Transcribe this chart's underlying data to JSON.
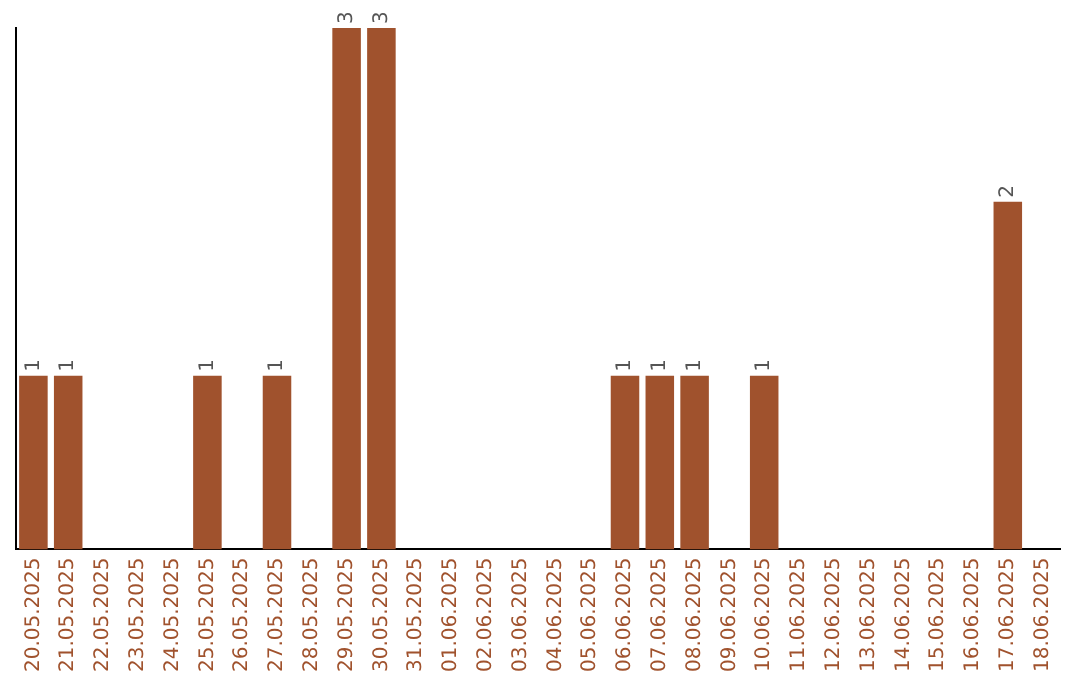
{
  "chart_data": {
    "type": "bar",
    "categories": [
      "20.05.2025",
      "21.05.2025",
      "22.05.2025",
      "23.05.2025",
      "24.05.2025",
      "25.05.2025",
      "26.05.2025",
      "27.05.2025",
      "28.05.2025",
      "29.05.2025",
      "30.05.2025",
      "31.05.2025",
      "01.06.2025",
      "02.06.2025",
      "03.06.2025",
      "04.06.2025",
      "05.06.2025",
      "06.06.2025",
      "07.06.2025",
      "08.06.2025",
      "09.06.2025",
      "10.06.2025",
      "11.06.2025",
      "12.06.2025",
      "13.06.2025",
      "14.06.2025",
      "15.06.2025",
      "16.06.2025",
      "17.06.2025",
      "18.06.2025"
    ],
    "values": [
      1,
      1,
      0,
      0,
      0,
      1,
      0,
      1,
      0,
      3,
      3,
      0,
      0,
      0,
      0,
      0,
      0,
      1,
      1,
      1,
      0,
      1,
      0,
      0,
      0,
      0,
      0,
      0,
      2,
      0
    ],
    "value_labels": [
      "1",
      "1",
      null,
      null,
      null,
      "1",
      null,
      "1",
      null,
      "3",
      "3",
      null,
      null,
      null,
      null,
      null,
      null,
      "1",
      "1",
      "1",
      null,
      "1",
      null,
      null,
      null,
      null,
      null,
      null,
      "2",
      null
    ],
    "color": "#a0522d",
    "grid": false,
    "legend": false
  }
}
